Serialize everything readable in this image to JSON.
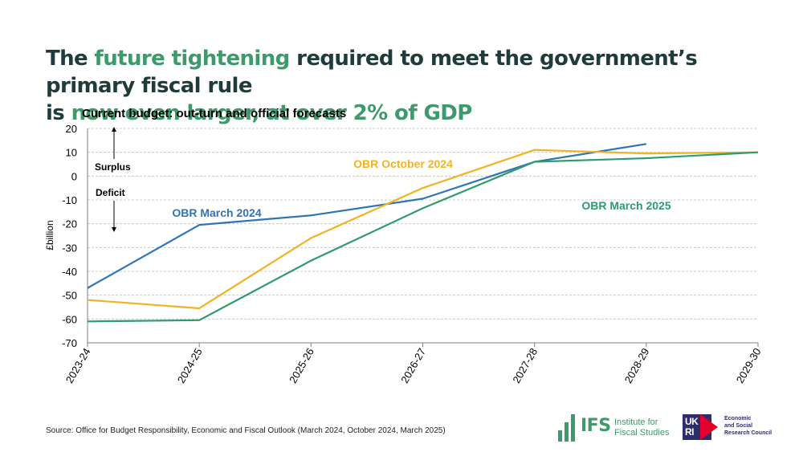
{
  "title": {
    "part1": "The ",
    "part2": "future tightening",
    "part3": " required to meet the government’s primary fiscal rule",
    "part4": "is ",
    "part5": "now even larger, at over 2% of GDP"
  },
  "colors": {
    "title_dark": "#1f3b3c",
    "title_green": "#3d9a6a"
  },
  "chart_data": {
    "type": "line",
    "title": "Current budget: out-turn and official forecasts",
    "xlabel": "",
    "ylabel": "£billion",
    "categories": [
      "2023-24",
      "2024-25",
      "2025-26",
      "2026-27",
      "2027-28",
      "2028-29",
      "2029-30"
    ],
    "ylim": [
      -70,
      20
    ],
    "yticks": [
      20,
      10,
      0,
      -10,
      -20,
      -30,
      -40,
      -50,
      -60,
      -70
    ],
    "series": [
      {
        "name": "OBR March 2024",
        "color": "#2e75b6",
        "values": [
          -47,
          -20.5,
          -16.5,
          -9.5,
          6,
          13.5,
          null
        ]
      },
      {
        "name": "OBR October 2024",
        "color": "#f0b323",
        "values": [
          -52,
          -55.5,
          -26,
          -5,
          11,
          9.5,
          10
        ]
      },
      {
        "name": "OBR March 2025",
        "color": "#2f9a6e",
        "values": [
          -61,
          -60.5,
          -35.5,
          -13.5,
          6,
          7.5,
          10
        ]
      }
    ],
    "annotations": {
      "surplus": "Surplus",
      "deficit": "Deficit"
    }
  },
  "source": "Source: Office for Budget Responsibility, Economic and Fiscal Outlook (March 2024, October 2024, March 2025)",
  "logos": {
    "ifs_word": "IFS",
    "ifs_line1": "Institute for",
    "ifs_line2": "Fiscal Studies",
    "ukri_l1": "UK",
    "ukri_l2": "RI",
    "esrc_l1": "Economic",
    "esrc_l2": "and Social",
    "esrc_l3": "Research Council"
  }
}
